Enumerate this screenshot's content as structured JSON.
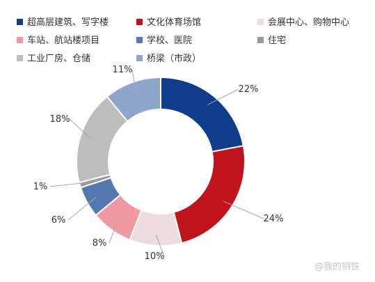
{
  "chart_data": {
    "type": "pie",
    "variant": "donut",
    "legend_position": "top",
    "series": [
      {
        "name": "超高层建筑、写字楼",
        "value": 22,
        "label": "22%",
        "color": "#0f3d8c"
      },
      {
        "name": "文化体育场馆",
        "value": 24,
        "label": "24%",
        "color": "#c0141c"
      },
      {
        "name": "会展中心、购物中心",
        "value": 10,
        "label": "10%",
        "color": "#ecdcdc"
      },
      {
        "name": "车站、航站楼项目",
        "value": 8,
        "label": "8%",
        "color": "#ef9aa3"
      },
      {
        "name": "学校、医院",
        "value": 6,
        "label": "6%",
        "color": "#5478b0"
      },
      {
        "name": "住宅",
        "value": 1,
        "label": "1%",
        "color": "#9a9a9a"
      },
      {
        "name": "工业厂房、仓储",
        "value": 18,
        "label": "18%",
        "color": "#bdbdbd"
      },
      {
        "name": "桥梁（市政）",
        "value": 11,
        "label": "11%",
        "color": "#8ea6cc"
      }
    ]
  },
  "watermark": "@我的钢铁"
}
